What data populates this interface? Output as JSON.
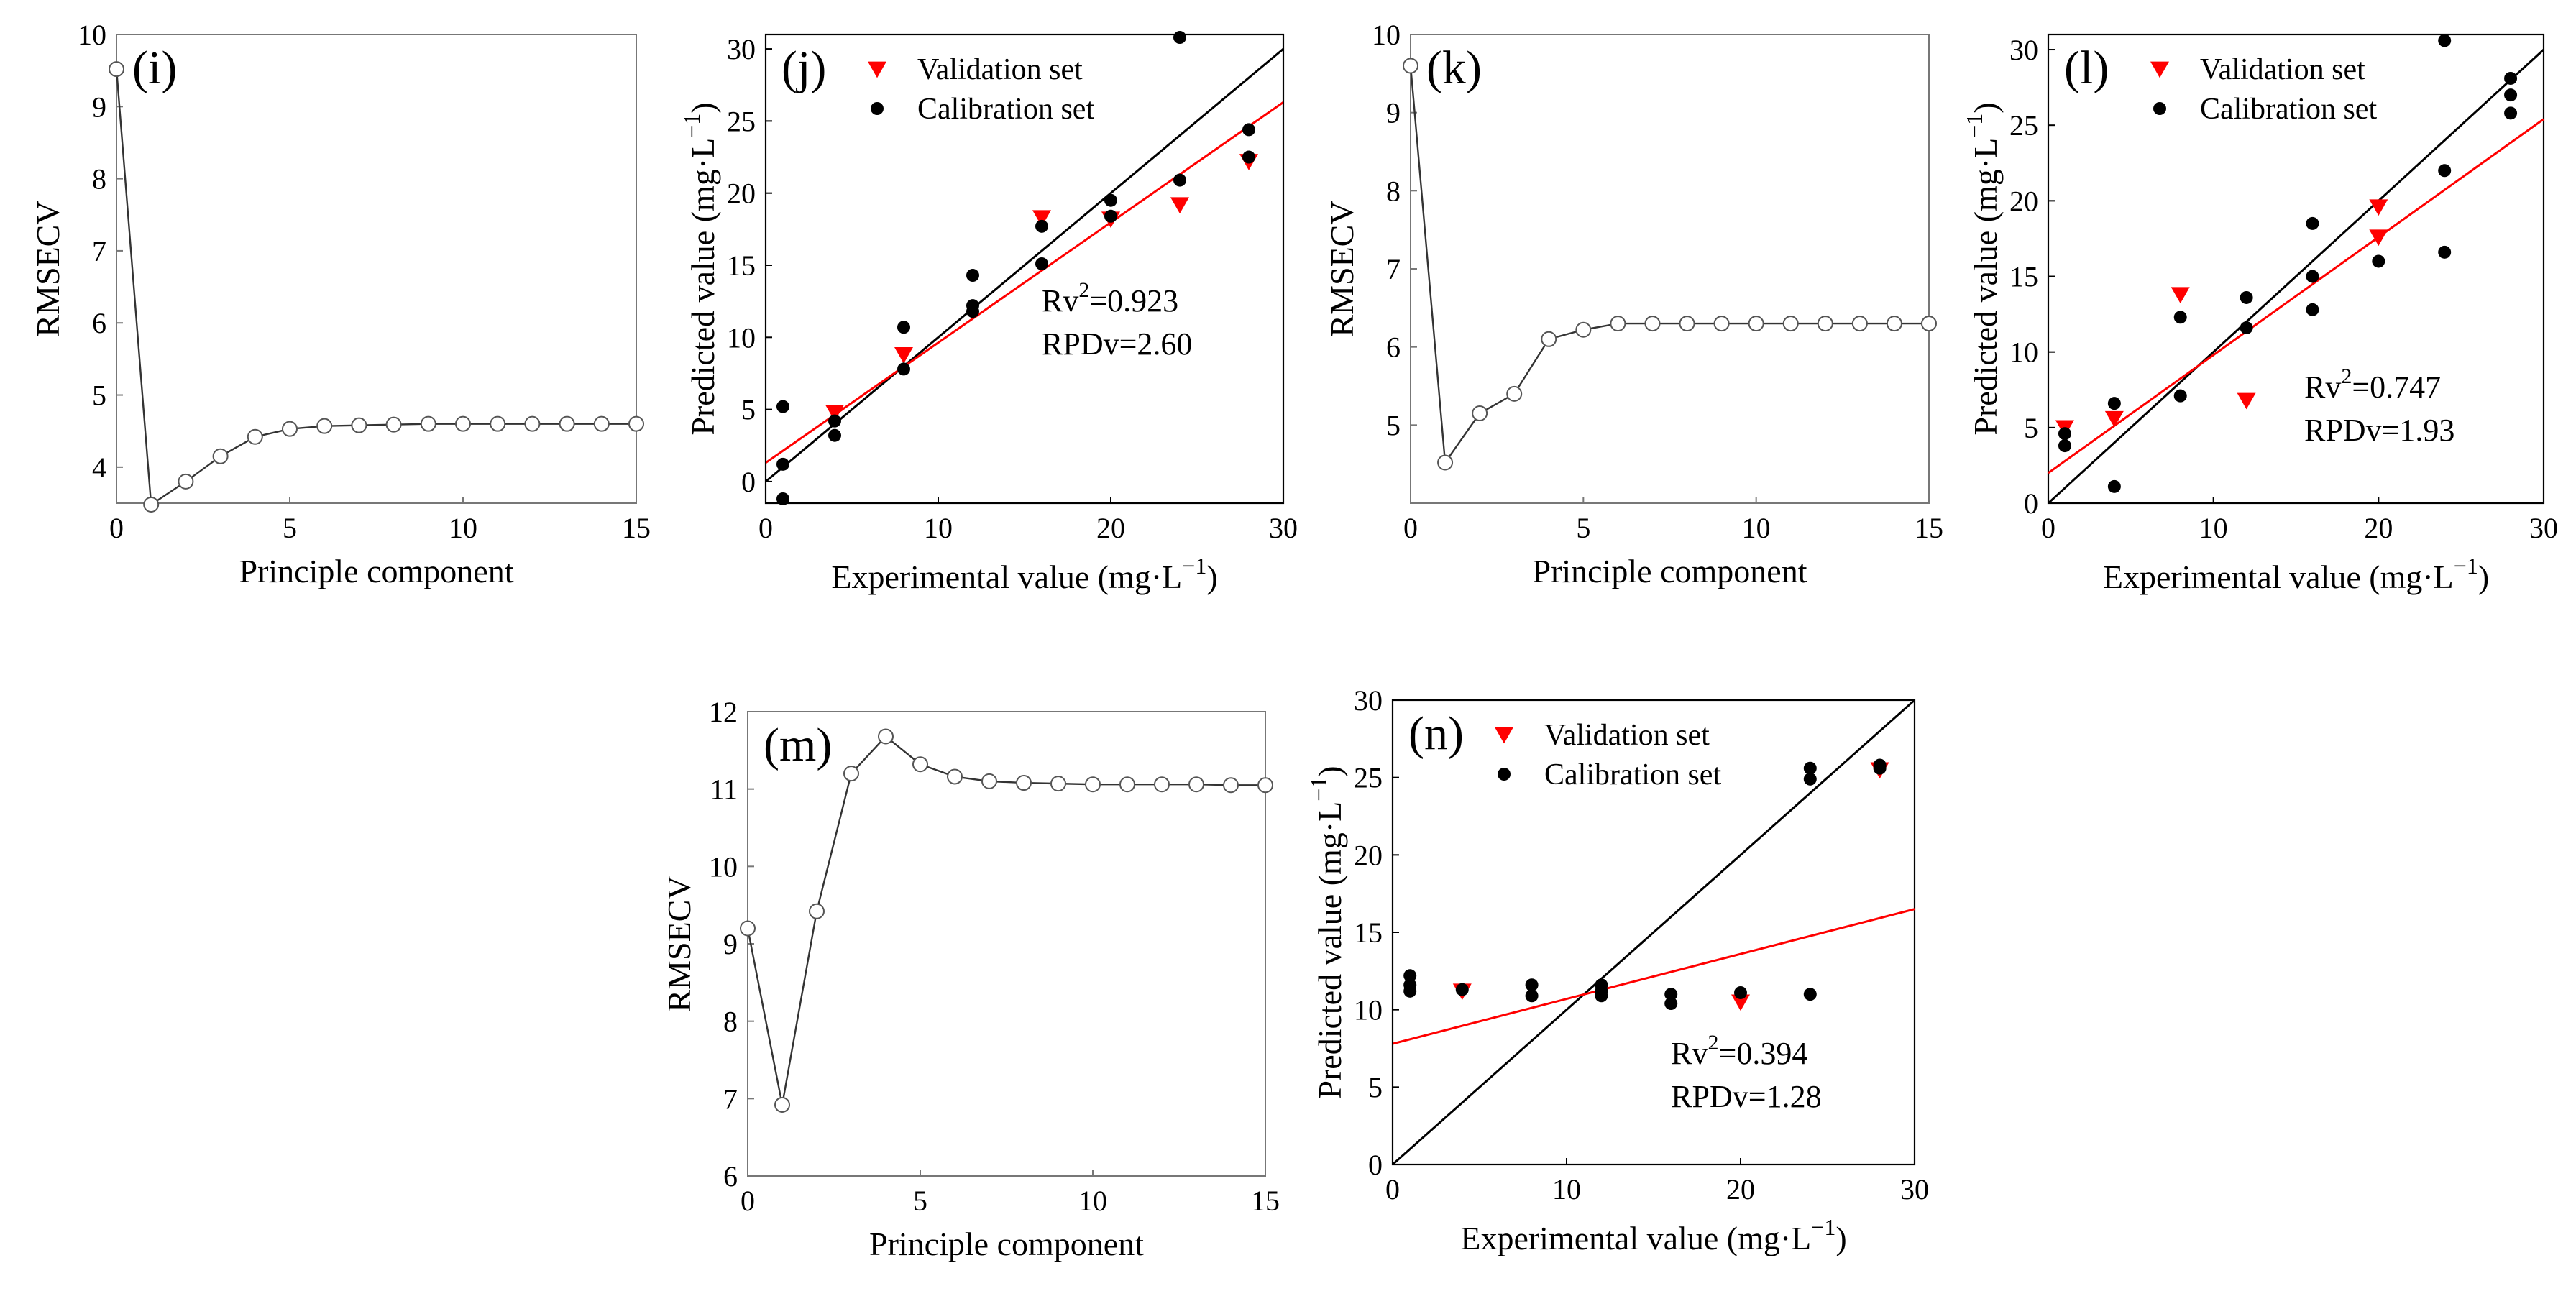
{
  "chart_data": [
    {
      "type": "line",
      "panel_label": "(i)",
      "xlabel": "Principle component",
      "ylabel": "RMSECV",
      "xlim": [
        0,
        15
      ],
      "ylim": [
        3.5,
        10
      ],
      "xticks": [
        0,
        5,
        10,
        15
      ],
      "yticks": [
        4,
        5,
        6,
        7,
        8,
        9,
        10
      ],
      "grid": false,
      "series": [
        {
          "x": [
            0,
            1,
            2,
            3,
            4,
            5,
            6,
            7,
            8,
            9,
            10,
            11,
            12,
            13,
            14,
            15
          ],
          "values": [
            9.52,
            3.48,
            3.8,
            4.15,
            4.42,
            4.53,
            4.57,
            4.58,
            4.59,
            4.6,
            4.6,
            4.6,
            4.6,
            4.6,
            4.6,
            4.6
          ],
          "color": "#333333",
          "marker": "open-circle"
        }
      ]
    },
    {
      "type": "scatter",
      "panel_label": "(j)",
      "xlabel": "Experimental value (mg·L",
      "xlabel_sup": "−1",
      "xlabel_tail": ")",
      "ylabel": "Predicted value (mg·L",
      "ylabel_sup": "−1",
      "ylabel_tail": ")",
      "xlim": [
        0,
        30
      ],
      "ylim": [
        -1.5,
        31
      ],
      "xticks": [
        0,
        10,
        20,
        30
      ],
      "yticks": [
        0,
        5,
        10,
        15,
        20,
        25,
        30
      ],
      "legend_position": "top",
      "legend": [
        "Validation set",
        "Calibration set"
      ],
      "annotation": {
        "r2_prefix": "Rv",
        "r2_sup": "2",
        "r2_value": "=0.923",
        "rpd": "RPDv=2.60"
      },
      "series": [
        {
          "name": "Validation set",
          "marker": "triangle-down",
          "color": "#ff0000",
          "points": [
            [
              4,
              4.8
            ],
            [
              8,
              8.8
            ],
            [
              16,
              18.3
            ],
            [
              20,
              18.2
            ],
            [
              24,
              19.2
            ],
            [
              28,
              22.2
            ]
          ]
        },
        {
          "name": "Calibration set",
          "marker": "dot",
          "color": "#000000",
          "points": [
            [
              1,
              5.2
            ],
            [
              1,
              1.2
            ],
            [
              1,
              -1.2
            ],
            [
              4,
              4.2
            ],
            [
              4,
              3.2
            ],
            [
              8,
              10.7
            ],
            [
              8,
              7.8
            ],
            [
              12,
              14.3
            ],
            [
              12,
              12.2
            ],
            [
              12,
              11.8
            ],
            [
              16,
              17.7
            ],
            [
              16,
              15.1
            ],
            [
              20,
              19.5
            ],
            [
              20,
              18.4
            ],
            [
              24,
              30.8
            ],
            [
              24,
              20.9
            ],
            [
              28,
              24.4
            ],
            [
              28,
              22.5
            ]
          ]
        }
      ],
      "lines": [
        {
          "label": "1:1 line",
          "color": "#000000",
          "from": [
            0,
            0
          ],
          "to": [
            30,
            30
          ]
        },
        {
          "label": "fit line",
          "color": "#ff0000",
          "from": [
            0,
            1.3
          ],
          "to": [
            30,
            26.3
          ]
        }
      ]
    },
    {
      "type": "line",
      "panel_label": "(k)",
      "xlabel": "Principle component",
      "ylabel": "RMSECV",
      "xlim": [
        0,
        15
      ],
      "ylim": [
        4,
        10
      ],
      "xticks": [
        0,
        5,
        10,
        15
      ],
      "yticks": [
        5,
        6,
        7,
        8,
        9,
        10
      ],
      "grid": false,
      "series": [
        {
          "x": [
            0,
            1,
            2,
            3,
            4,
            5,
            6,
            7,
            8,
            9,
            10,
            11,
            12,
            13,
            14,
            15
          ],
          "values": [
            9.6,
            4.52,
            5.15,
            5.4,
            6.1,
            6.22,
            6.3,
            6.3,
            6.3,
            6.3,
            6.3,
            6.3,
            6.3,
            6.3,
            6.3,
            6.3
          ],
          "color": "#333333",
          "marker": "open-circle"
        }
      ]
    },
    {
      "type": "scatter",
      "panel_label": "(l)",
      "xlabel": "Experimental value (mg·L",
      "xlabel_sup": "−1",
      "xlabel_tail": ")",
      "ylabel": "Predicted value (mg·L",
      "ylabel_sup": "−1",
      "ylabel_tail": ")",
      "xlim": [
        0,
        30
      ],
      "ylim": [
        0,
        31
      ],
      "xticks": [
        0,
        10,
        20,
        30
      ],
      "yticks": [
        0,
        5,
        10,
        15,
        20,
        25,
        30
      ],
      "legend_position": "top",
      "legend": [
        "Validation set",
        "Calibration set"
      ],
      "annotation": {
        "r2_prefix": "Rv",
        "r2_sup": "2",
        "r2_value": "=0.747",
        "rpd": "RPDv=1.93"
      },
      "series": [
        {
          "name": "Validation set",
          "marker": "triangle-down",
          "color": "#ff0000",
          "points": [
            [
              1,
              5
            ],
            [
              4,
              5.6
            ],
            [
              8,
              13.8
            ],
            [
              12,
              6.8
            ],
            [
              20,
              19.6
            ],
            [
              20,
              17.6
            ]
          ]
        },
        {
          "name": "Calibration set",
          "marker": "dot",
          "color": "#000000",
          "points": [
            [
              1,
              4.6
            ],
            [
              1,
              3.8
            ],
            [
              4,
              6.6
            ],
            [
              4,
              1.1
            ],
            [
              8,
              12.3
            ],
            [
              8,
              7.1
            ],
            [
              12,
              13.6
            ],
            [
              12,
              11.6
            ],
            [
              16,
              18.5
            ],
            [
              16,
              15
            ],
            [
              16,
              12.8
            ],
            [
              20,
              16
            ],
            [
              24,
              30.6
            ],
            [
              24,
              22
            ],
            [
              24,
              16.6
            ],
            [
              28,
              28.1
            ],
            [
              28,
              27
            ],
            [
              28,
              25.8
            ]
          ]
        }
      ],
      "lines": [
        {
          "label": "1:1 line",
          "color": "#000000",
          "from": [
            0,
            0
          ],
          "to": [
            30,
            30
          ]
        },
        {
          "label": "fit line",
          "color": "#ff0000",
          "from": [
            0,
            2
          ],
          "to": [
            30,
            25.4
          ]
        }
      ]
    },
    {
      "type": "line",
      "panel_label": "(m)",
      "xlabel": "Principle component",
      "ylabel": "RMSECV",
      "xlim": [
        0,
        15
      ],
      "ylim": [
        6,
        12
      ],
      "xticks": [
        0,
        5,
        10,
        15
      ],
      "yticks": [
        6,
        7,
        8,
        9,
        10,
        11,
        12
      ],
      "grid": false,
      "series": [
        {
          "x": [
            0,
            1,
            2,
            3,
            4,
            5,
            6,
            7,
            8,
            9,
            10,
            11,
            12,
            13,
            14,
            15
          ],
          "values": [
            9.2,
            6.92,
            9.42,
            11.2,
            11.68,
            11.32,
            11.16,
            11.1,
            11.08,
            11.07,
            11.06,
            11.06,
            11.06,
            11.06,
            11.05,
            11.05
          ],
          "color": "#333333",
          "marker": "open-circle"
        }
      ]
    },
    {
      "type": "scatter",
      "panel_label": "(n)",
      "xlabel": "Experimental value (mg·L",
      "xlabel_sup": "−1",
      "xlabel_tail": ")",
      "ylabel": "Predicted value (mg·L",
      "ylabel_sup": "−1",
      "ylabel_tail": ")",
      "xlim": [
        0,
        30
      ],
      "ylim": [
        0,
        30
      ],
      "xticks": [
        0,
        10,
        20,
        30
      ],
      "yticks": [
        0,
        5,
        10,
        15,
        20,
        25,
        30
      ],
      "legend_position": "top",
      "legend": [
        "Validation set",
        "Calibration set"
      ],
      "annotation": {
        "r2_prefix": "Rv",
        "r2_sup": "2",
        "r2_value": "=0.394",
        "rpd": "RPDv=1.28"
      },
      "series": [
        {
          "name": "Validation set",
          "marker": "triangle-down",
          "color": "#ff0000",
          "points": [
            [
              4,
              11.2
            ],
            [
              20,
              10.5
            ],
            [
              28,
              25.5
            ]
          ]
        },
        {
          "name": "Calibration set",
          "marker": "dot",
          "color": "#000000",
          "points": [
            [
              1,
              12.2
            ],
            [
              1,
              11.6
            ],
            [
              1,
              11.2
            ],
            [
              4,
              11.3
            ],
            [
              8,
              11.6
            ],
            [
              8,
              10.9
            ],
            [
              12,
              11.6
            ],
            [
              12,
              11.2
            ],
            [
              12,
              10.9
            ],
            [
              16,
              11
            ],
            [
              16,
              10.4
            ],
            [
              20,
              11.1
            ],
            [
              24,
              25.6
            ],
            [
              24,
              24.9
            ],
            [
              24,
              11
            ],
            [
              28,
              25.8
            ],
            [
              28,
              25.6
            ]
          ]
        }
      ],
      "lines": [
        {
          "label": "1:1 line",
          "color": "#000000",
          "from": [
            0,
            0
          ],
          "to": [
            30,
            30
          ]
        },
        {
          "label": "fit line",
          "color": "#ff0000",
          "from": [
            0,
            7.8
          ],
          "to": [
            30,
            16.5
          ]
        }
      ]
    }
  ]
}
